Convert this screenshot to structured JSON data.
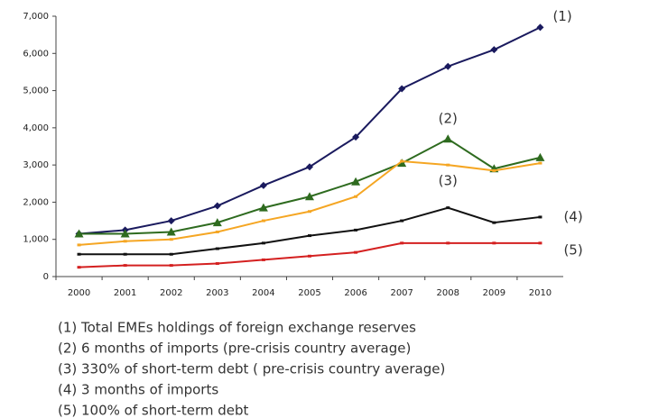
{
  "chart_data": {
    "type": "line",
    "x": [
      "2000",
      "2001",
      "2002",
      "2003",
      "2004",
      "2005",
      "2006",
      "2007",
      "2008",
      "2009",
      "2010"
    ],
    "ylim": [
      0,
      7000
    ],
    "yticks": [
      0,
      {
        "value": 1000,
        "label": "1,000"
      },
      {
        "value": 2000,
        "label": "2,000"
      },
      {
        "value": 3000,
        "label": "3,000"
      },
      {
        "value": 4000,
        "label": "4,000"
      },
      {
        "value": 5000,
        "label": "5,000"
      },
      {
        "value": 6000,
        "label": "6,000"
      },
      {
        "value": 7000,
        "label": "7,000"
      }
    ],
    "grid": false,
    "series": [
      {
        "name": "(1) Total EMEs holdings of foreign exchange reserves",
        "label": "(1)",
        "color": "#1a1a5e",
        "marker": "diamond",
        "values": [
          1150,
          1250,
          1500,
          1900,
          2450,
          2950,
          3750,
          5050,
          5650,
          6100,
          6700
        ]
      },
      {
        "name": "(2) 6 months of imports (pre-crisis country average)",
        "label": "(2)",
        "color": "#2e6b1f",
        "marker": "triangle",
        "values": [
          1150,
          1150,
          1200,
          1450,
          1850,
          2150,
          2550,
          3050,
          3700,
          2900,
          3200
        ]
      },
      {
        "name": "(3) 330% of short-term debt ( pre-crisis country average)",
        "label": "(3)",
        "color": "#f5a623",
        "marker": "none",
        "values": [
          850,
          950,
          1000,
          1200,
          1500,
          1750,
          2150,
          3100,
          3000,
          2850,
          3050
        ]
      },
      {
        "name": "(4) 3 months of imports",
        "label": "(4)",
        "color": "#111111",
        "marker": "none",
        "values": [
          600,
          600,
          600,
          750,
          900,
          1100,
          1250,
          1500,
          1850,
          1450,
          1600
        ]
      },
      {
        "name": "(5) 100% of short-term debt",
        "label": "(5)",
        "color": "#d42020",
        "marker": "none",
        "values": [
          250,
          300,
          300,
          350,
          450,
          550,
          650,
          900,
          900,
          900,
          900
        ]
      }
    ]
  }
}
